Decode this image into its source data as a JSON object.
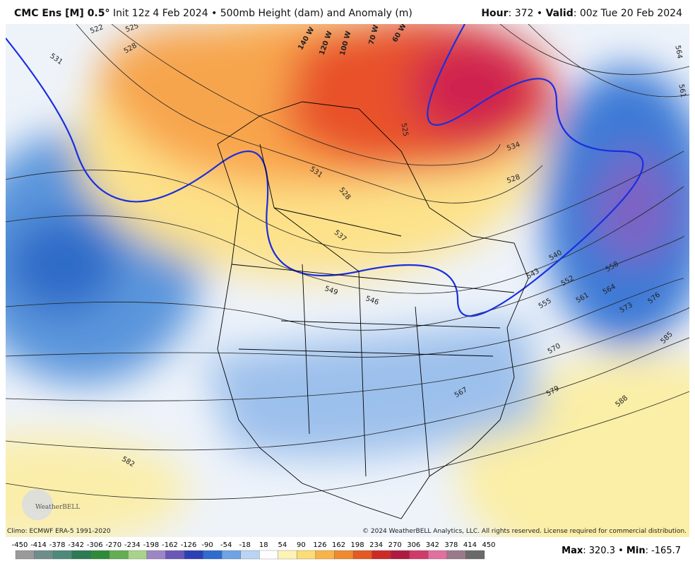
{
  "header": {
    "model": "CMC Ens [M] 0.5°",
    "description": "Init 12z 4 Feb 2024 • 500mb Height (dam) and Anomaly (m)",
    "hour_label": "Hour",
    "hour_value": ": 372 • ",
    "valid_label": "Valid",
    "valid_value": ": 00z Tue 20 Feb 2024"
  },
  "map": {
    "contour_labels": [
      "522",
      "525",
      "528",
      "531",
      "531",
      "528",
      "537",
      "549",
      "546",
      "525",
      "534",
      "528",
      "540",
      "543",
      "552",
      "555",
      "561",
      "564",
      "573",
      "576",
      "558",
      "564",
      "561",
      "570",
      "579",
      "585",
      "588",
      "567",
      "582"
    ],
    "longitude_labels": [
      "140 W",
      "120 W",
      "100 W",
      "70 W",
      "60 W"
    ],
    "logo": "WeatherBELL"
  },
  "footer": {
    "climo": "Climo: ECMWF ERA-5 1991-2020",
    "copyright": "© 2024 WeatherBELL Analytics, LLC. All rights reserved. License required for commercial distribution.",
    "colorbar_labels": [
      -450,
      -414,
      -378,
      -342,
      -306,
      -270,
      -234,
      -198,
      -162,
      -126,
      -90,
      -54,
      -18,
      18,
      54,
      90,
      126,
      162,
      198,
      234,
      270,
      306,
      342,
      378,
      414,
      450
    ],
    "max_label": "Max",
    "max_value": ": 320.3 • ",
    "min_label": "Min",
    "min_value": ": -165.7"
  }
}
